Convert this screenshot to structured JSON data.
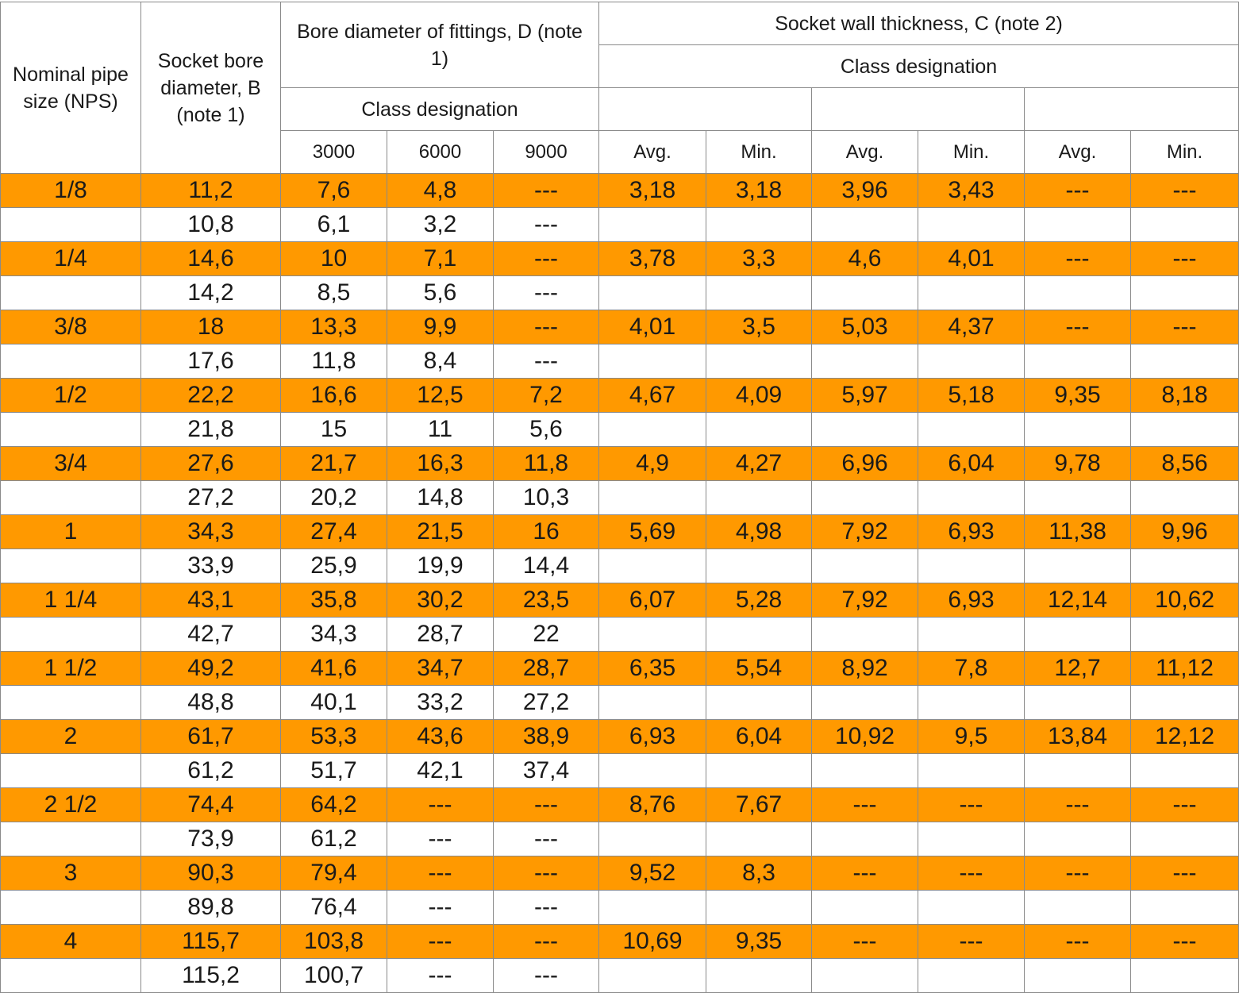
{
  "headers": {
    "nps": "Nominal pipe size (NPS)",
    "socket_bore": "Socket bore diameter, B (note 1)",
    "bore_fittings": "Bore diameter of fittings, D (note 1)",
    "bore_class": "Class designation",
    "bore_classes": [
      "3000",
      "6000",
      "9000"
    ],
    "wall": "Socket wall thickness, C (note 2)",
    "wall_class": "Class designation",
    "wall_sub": [
      "Avg.",
      "Min.",
      "Avg.",
      "Min.",
      "Avg.",
      "Min."
    ]
  },
  "rows": [
    {
      "nps": "1/8",
      "b": "11,2",
      "d3000": "7,6",
      "d6000": "4,8",
      "d9000": "---",
      "c": [
        "3,18",
        "3,18",
        "3,96",
        "3,43",
        "---",
        "---"
      ]
    },
    {
      "nps": "",
      "b": "10,8",
      "d3000": "6,1",
      "d6000": "3,2",
      "d9000": "---",
      "c": [
        "",
        "",
        "",
        "",
        "",
        ""
      ]
    },
    {
      "nps": "1/4",
      "b": "14,6",
      "d3000": "10",
      "d6000": "7,1",
      "d9000": "---",
      "c": [
        "3,78",
        "3,3",
        "4,6",
        "4,01",
        "---",
        "---"
      ]
    },
    {
      "nps": "",
      "b": "14,2",
      "d3000": "8,5",
      "d6000": "5,6",
      "d9000": "---",
      "c": [
        "",
        "",
        "",
        "",
        "",
        ""
      ]
    },
    {
      "nps": "3/8",
      "b": "18",
      "d3000": "13,3",
      "d6000": "9,9",
      "d9000": "---",
      "c": [
        "4,01",
        "3,5",
        "5,03",
        "4,37",
        "---",
        "---"
      ]
    },
    {
      "nps": "",
      "b": "17,6",
      "d3000": "11,8",
      "d6000": "8,4",
      "d9000": "---",
      "c": [
        "",
        "",
        "",
        "",
        "",
        ""
      ]
    },
    {
      "nps": "1/2",
      "b": "22,2",
      "d3000": "16,6",
      "d6000": "12,5",
      "d9000": "7,2",
      "c": [
        "4,67",
        "4,09",
        "5,97",
        "5,18",
        "9,35",
        "8,18"
      ]
    },
    {
      "nps": "",
      "b": "21,8",
      "d3000": "15",
      "d6000": "11",
      "d9000": "5,6",
      "c": [
        "",
        "",
        "",
        "",
        "",
        ""
      ]
    },
    {
      "nps": "3/4",
      "b": "27,6",
      "d3000": "21,7",
      "d6000": "16,3",
      "d9000": "11,8",
      "c": [
        "4,9",
        "4,27",
        "6,96",
        "6,04",
        "9,78",
        "8,56"
      ]
    },
    {
      "nps": "",
      "b": "27,2",
      "d3000": "20,2",
      "d6000": "14,8",
      "d9000": "10,3",
      "c": [
        "",
        "",
        "",
        "",
        "",
        ""
      ]
    },
    {
      "nps": "1",
      "b": "34,3",
      "d3000": "27,4",
      "d6000": "21,5",
      "d9000": "16",
      "c": [
        "5,69",
        "4,98",
        "7,92",
        "6,93",
        "11,38",
        "9,96"
      ]
    },
    {
      "nps": "",
      "b": "33,9",
      "d3000": "25,9",
      "d6000": "19,9",
      "d9000": "14,4",
      "c": [
        "",
        "",
        "",
        "",
        "",
        ""
      ]
    },
    {
      "nps": "1 1/4",
      "b": "43,1",
      "d3000": "35,8",
      "d6000": "30,2",
      "d9000": "23,5",
      "c": [
        "6,07",
        "5,28",
        "7,92",
        "6,93",
        "12,14",
        "10,62"
      ]
    },
    {
      "nps": "",
      "b": "42,7",
      "d3000": "34,3",
      "d6000": "28,7",
      "d9000": "22",
      "c": [
        "",
        "",
        "",
        "",
        "",
        ""
      ]
    },
    {
      "nps": "1 1/2",
      "b": "49,2",
      "d3000": "41,6",
      "d6000": "34,7",
      "d9000": "28,7",
      "c": [
        "6,35",
        "5,54",
        "8,92",
        "7,8",
        "12,7",
        "11,12"
      ]
    },
    {
      "nps": "",
      "b": "48,8",
      "d3000": "40,1",
      "d6000": "33,2",
      "d9000": "27,2",
      "c": [
        "",
        "",
        "",
        "",
        "",
        ""
      ]
    },
    {
      "nps": "2",
      "b": "61,7",
      "d3000": "53,3",
      "d6000": "43,6",
      "d9000": "38,9",
      "c": [
        "6,93",
        "6,04",
        "10,92",
        "9,5",
        "13,84",
        "12,12"
      ]
    },
    {
      "nps": "",
      "b": "61,2",
      "d3000": "51,7",
      "d6000": "42,1",
      "d9000": "37,4",
      "c": [
        "",
        "",
        "",
        "",
        "",
        ""
      ]
    },
    {
      "nps": "2 1/2",
      "b": "74,4",
      "d3000": "64,2",
      "d6000": "---",
      "d9000": "---",
      "c": [
        "8,76",
        "7,67",
        "---",
        "---",
        "---",
        "---"
      ]
    },
    {
      "nps": "",
      "b": "73,9",
      "d3000": "61,2",
      "d6000": "---",
      "d9000": "---",
      "c": [
        "",
        "",
        "",
        "",
        "",
        ""
      ]
    },
    {
      "nps": "3",
      "b": "90,3",
      "d3000": "79,4",
      "d6000": "---",
      "d9000": "---",
      "c": [
        "9,52",
        "8,3",
        "---",
        "---",
        "---",
        "---"
      ]
    },
    {
      "nps": "",
      "b": "89,8",
      "d3000": "76,4",
      "d6000": "---",
      "d9000": "---",
      "c": [
        "",
        "",
        "",
        "",
        "",
        ""
      ]
    },
    {
      "nps": "4",
      "b": "115,7",
      "d3000": "103,8",
      "d6000": "---",
      "d9000": "---",
      "c": [
        "10,69",
        "9,35",
        "---",
        "---",
        "---",
        "---"
      ]
    },
    {
      "nps": "",
      "b": "115,2",
      "d3000": "100,7",
      "d6000": "---",
      "d9000": "---",
      "c": [
        "",
        "",
        "",
        "",
        "",
        ""
      ]
    }
  ],
  "colors": {
    "highlight": "#ff9900",
    "border": "#8a8a8a"
  }
}
